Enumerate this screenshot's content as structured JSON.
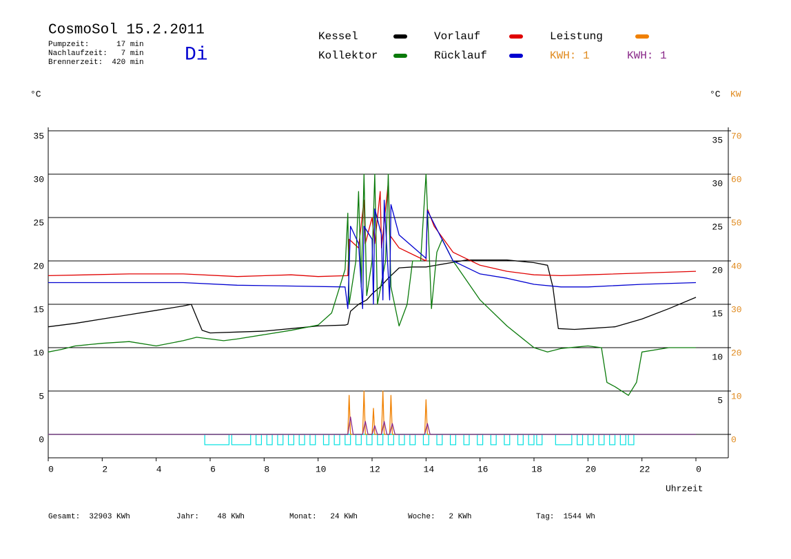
{
  "chart_data": {
    "type": "line",
    "title": "CosmoSol 15.2.2011",
    "info": [
      "Pumpzeit:      17 min",
      "Nachlaufzeit:   7 min",
      "Brennerzeit:  420 min"
    ],
    "weekday": "Di",
    "y_unit": "°C",
    "y2_unit": "KW",
    "x_label": "Uhrzeit",
    "kwh_labels": [
      {
        "text": "KWH: 1",
        "color": "#e08a1e"
      },
      {
        "text": "KWH: 1",
        "color": "#8a2a8a"
      }
    ],
    "footer": [
      "Gesamt:  32903 KWh",
      "Jahr:    48 KWh",
      "Monat:   24 KWh",
      "Woche:   2 KWh",
      "Tag:  1544 Wh"
    ],
    "xlim": [
      0,
      25.2
    ],
    "xticks": [
      0,
      2,
      4,
      6,
      8,
      10,
      12,
      14,
      16,
      18,
      20,
      22,
      {
        "value": 24,
        "label": "0"
      }
    ],
    "ylim": [
      -2.7,
      35
    ],
    "yticks": [
      0,
      5,
      10,
      15,
      20,
      25,
      30,
      35
    ],
    "y2lim": [
      -5.4,
      70
    ],
    "y2ticks": [
      0,
      10,
      20,
      30,
      40,
      50,
      60,
      70
    ],
    "grid": true,
    "baseline_color": "#00e0e0",
    "series": [
      {
        "name": "Kessel",
        "color": "#000000",
        "x": [
          0,
          1,
          2,
          3,
          4,
          5,
          5.3,
          5.5,
          5.7,
          6,
          7,
          8,
          9,
          10,
          11,
          11.1,
          11.2,
          11.5,
          11.8,
          12,
          12.3,
          12.6,
          13,
          13.5,
          14,
          15.5,
          17,
          18,
          18.5,
          18.7,
          18.9,
          19.5,
          20,
          21,
          22,
          23,
          24
        ],
        "values": [
          12.4,
          12.8,
          13.3,
          13.8,
          14.3,
          14.8,
          15,
          13.5,
          12,
          11.7,
          11.8,
          11.9,
          12.2,
          12.5,
          12.6,
          12.7,
          14.2,
          15,
          15.5,
          16.2,
          17,
          18,
          19.2,
          19.3,
          19.3,
          20.1,
          20.1,
          19.8,
          19.5,
          17,
          12.2,
          12.1,
          12.2,
          12.4,
          13.3,
          14.5,
          15.8
        ]
      },
      {
        "name": "Vorlauf",
        "color": "#e00000",
        "x": [
          0,
          3,
          5,
          7,
          9,
          10,
          11.1,
          11.15,
          11.5,
          11.7,
          11.75,
          12,
          12.1,
          12.3,
          12.35,
          12.6,
          12.65,
          13,
          14,
          14.05,
          14.3,
          15,
          16,
          17,
          18,
          19,
          20,
          22,
          24
        ],
        "values": [
          18.3,
          18.5,
          18.5,
          18.2,
          18.4,
          18.2,
          18.3,
          22.5,
          21.5,
          27,
          22,
          25,
          22,
          28,
          21.5,
          29,
          23,
          21.5,
          20,
          26,
          24,
          21,
          19.5,
          18.8,
          18.4,
          18.3,
          18.4,
          18.6,
          18.8
        ]
      },
      {
        "name": "Leistung",
        "color": "#f08000",
        "axis": "y2",
        "x": [
          0,
          11.1,
          11.15,
          11.2,
          11.65,
          11.7,
          11.75,
          12,
          12.05,
          12.1,
          12.35,
          12.4,
          12.45,
          12.65,
          12.7,
          12.75,
          13.95,
          14,
          14.05,
          24
        ],
        "values": [
          0,
          0,
          9,
          0,
          0,
          10,
          0,
          0,
          6,
          0,
          0,
          10,
          0,
          0,
          9,
          0,
          0,
          8,
          0,
          0
        ]
      },
      {
        "name": "Kollektor",
        "color": "#0a7a0a",
        "x": [
          0,
          0.5,
          1,
          2,
          3,
          4,
          5,
          5.5,
          6,
          6.5,
          7,
          8,
          9,
          10,
          10.5,
          11,
          11.1,
          11.15,
          11.4,
          11.5,
          11.6,
          11.7,
          11.8,
          12,
          12.1,
          12.2,
          12.5,
          12.6,
          12.7,
          13,
          13.3,
          13.5,
          13.8,
          14,
          14.2,
          14.4,
          14.6,
          15,
          16,
          17,
          18,
          18.5,
          19,
          20,
          20.5,
          20.7,
          21,
          21.5,
          21.8,
          22,
          23,
          24
        ],
        "values": [
          9.5,
          9.8,
          10.2,
          10.5,
          10.7,
          10.2,
          10.8,
          11.2,
          11,
          10.8,
          11,
          11.5,
          12,
          12.6,
          14,
          19,
          25.5,
          15,
          20,
          28,
          17,
          30,
          16,
          20,
          30,
          15,
          20,
          30,
          17,
          12.5,
          15,
          20,
          20,
          30,
          14.5,
          21,
          22.5,
          20,
          15.5,
          12.5,
          10,
          9.5,
          9.9,
          10.2,
          10,
          6,
          5.5,
          4.5,
          6,
          9.5,
          10,
          10
        ]
      },
      {
        "name": "Rücklauf",
        "color": "#0000d0",
        "x": [
          0,
          5,
          7,
          9,
          11,
          11.1,
          11.2,
          11.5,
          11.65,
          11.7,
          12,
          12.05,
          12.1,
          12.35,
          12.4,
          12.45,
          12.65,
          12.7,
          13,
          14,
          14.05,
          15,
          16,
          17,
          18,
          19,
          20,
          22,
          24
        ],
        "values": [
          17.5,
          17.5,
          17.2,
          17.1,
          17,
          14.5,
          24,
          22,
          14.5,
          24,
          22.5,
          15,
          26,
          23,
          15.5,
          27,
          15.5,
          26.5,
          23,
          20.3,
          25.8,
          20,
          18.5,
          18,
          17.3,
          17,
          17,
          17.3,
          17.5
        ]
      },
      {
        "color": "#8a2a8a",
        "axis": "y2",
        "x": [
          0,
          11.1,
          11.2,
          11.3,
          11.65,
          11.75,
          11.85,
          12,
          12.1,
          12.2,
          12.35,
          12.45,
          12.55,
          12.65,
          12.75,
          12.85,
          13.95,
          14.05,
          14.15,
          24
        ],
        "values": [
          0,
          0,
          4,
          0,
          0,
          3,
          0,
          0,
          2,
          0,
          0,
          3,
          0,
          0,
          2.5,
          0,
          0,
          2.5,
          0,
          0
        ]
      }
    ],
    "intervals": [
      [
        5.8,
        6.7
      ],
      [
        6.8,
        7.5
      ],
      [
        7.7,
        7.9
      ],
      [
        8.1,
        8.3
      ],
      [
        8.5,
        8.7
      ],
      [
        8.9,
        9.1
      ],
      [
        9.3,
        9.5
      ],
      [
        9.7,
        9.9
      ],
      [
        10.2,
        10.4
      ],
      [
        10.6,
        10.8
      ],
      [
        11.0,
        11.2
      ],
      [
        11.4,
        11.6
      ],
      [
        11.8,
        12.0
      ],
      [
        12.2,
        12.4
      ],
      [
        12.6,
        12.8
      ],
      [
        13.0,
        13.2
      ],
      [
        13.4,
        13.6
      ],
      [
        13.9,
        14.1
      ],
      [
        14.4,
        14.6
      ],
      [
        14.9,
        15.1
      ],
      [
        15.4,
        15.6
      ],
      [
        15.9,
        16.1
      ],
      [
        16.4,
        16.6
      ],
      [
        16.9,
        17.1
      ],
      [
        17.4,
        17.6
      ],
      [
        17.8,
        18.0
      ],
      [
        18.1,
        18.3
      ],
      [
        18.8,
        19.4
      ],
      [
        19.6,
        19.8
      ],
      [
        20.0,
        20.2
      ],
      [
        20.4,
        20.6
      ],
      [
        20.8,
        21.0
      ],
      [
        21.2,
        21.4
      ],
      [
        21.5,
        21.7
      ]
    ]
  }
}
